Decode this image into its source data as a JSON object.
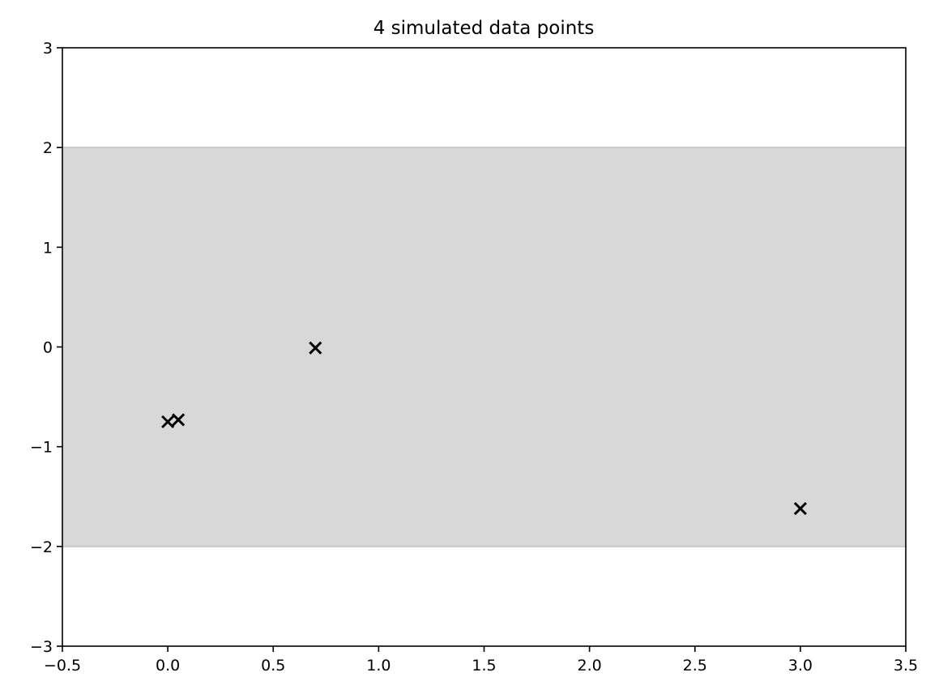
{
  "chart_data": {
    "type": "scatter",
    "title": "4 simulated data points",
    "xlabel": "",
    "ylabel": "",
    "xlim": [
      -0.5,
      3.5
    ],
    "ylim": [
      -3,
      3
    ],
    "x_ticks": [
      -0.5,
      0.0,
      0.5,
      1.0,
      1.5,
      2.0,
      2.5,
      3.0,
      3.5
    ],
    "x_tick_labels": [
      "−0.5",
      "0.0",
      "0.5",
      "1.0",
      "1.5",
      "2.0",
      "2.5",
      "3.0",
      "3.5"
    ],
    "y_ticks": [
      -3,
      -2,
      -1,
      0,
      1,
      2,
      3
    ],
    "y_tick_labels": [
      "−3",
      "−2",
      "−1",
      "0",
      "1",
      "2",
      "3"
    ],
    "grid": false,
    "band": {
      "y_min": -2,
      "y_max": 2,
      "color": "#d8d8d8",
      "edge_color": "#c8c8c8"
    },
    "series": [
      {
        "marker": "x",
        "color": "#000000",
        "points": [
          {
            "x": 0.0,
            "y": -0.75
          },
          {
            "x": 0.05,
            "y": -0.73
          },
          {
            "x": 0.7,
            "y": -0.01
          },
          {
            "x": 3.0,
            "y": -1.62
          }
        ]
      }
    ]
  }
}
